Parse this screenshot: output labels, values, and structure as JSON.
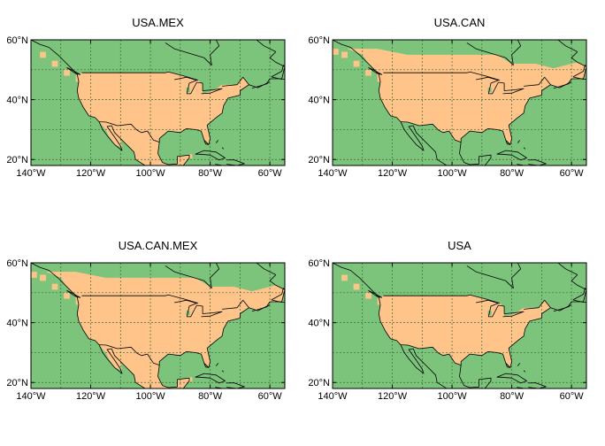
{
  "colors": {
    "masked_region": "#ffc48a",
    "background": "#7cc47c",
    "frame": "#000000"
  },
  "axes": {
    "lat_labels": [
      "60°N",
      "40°N",
      "20°N"
    ],
    "lon_labels": [
      "140°W",
      "120°W",
      "100°W",
      "80°W",
      "60°W"
    ],
    "lat_values": [
      60,
      40,
      20
    ],
    "lon_values": [
      -140,
      -120,
      -100,
      -80,
      -60
    ],
    "lon_range": [
      -140,
      -55
    ],
    "lat_range": [
      18,
      60
    ]
  },
  "panels": [
    {
      "title": "USA.MEX",
      "regions": [
        "USA",
        "MEX"
      ]
    },
    {
      "title": "USA.CAN",
      "regions": [
        "USA",
        "CAN_S"
      ]
    },
    {
      "title": "USA.CAN.MEX",
      "regions": [
        "USA",
        "CAN_S",
        "MEX"
      ]
    },
    {
      "title": "USA",
      "regions": [
        "USA"
      ]
    }
  ]
}
